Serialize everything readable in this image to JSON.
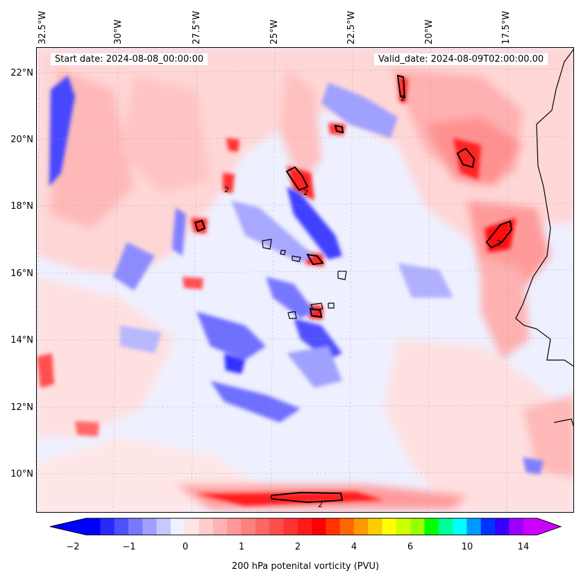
{
  "map": {
    "start_date": "Start date: 2024-08-08_00:00:00",
    "valid_date": "Valid_date: 2024-08-09T02:00:00.00",
    "lon_labels": [
      "32.5°W",
      "30°W",
      "27.5°W",
      "25°W",
      "22.5°W",
      "20°W",
      "17.5°W"
    ],
    "lat_labels": [
      "22°N",
      "20°N",
      "18°N",
      "16°N",
      "14°N",
      "12°N",
      "10°N"
    ],
    "contour_label": "2"
  },
  "colorbar": {
    "label": "200 hPa potenital vorticity (PVU)",
    "tick_labels": [
      "−2",
      "−1",
      "0",
      "1",
      "2",
      "4",
      "6",
      "10",
      "14"
    ],
    "colors": [
      "#0000ff",
      "#2828ff",
      "#5050ff",
      "#7878ff",
      "#a0a0ff",
      "#c8c8ff",
      "#f0f0ff",
      "#ffe6e6",
      "#ffcccc",
      "#ffb3b3",
      "#ff9999",
      "#ff8080",
      "#ff6666",
      "#ff4d4d",
      "#ff3333",
      "#ff1a1a",
      "#ff0000",
      "#ff3300",
      "#ff6600",
      "#ff9900",
      "#ffcc00",
      "#ffff00",
      "#ccff00",
      "#99ff00",
      "#00ff00",
      "#00ff99",
      "#00ffff",
      "#0099ff",
      "#0033ff",
      "#3300ff",
      "#9900ff",
      "#cc00ff"
    ],
    "extend": "both"
  }
}
